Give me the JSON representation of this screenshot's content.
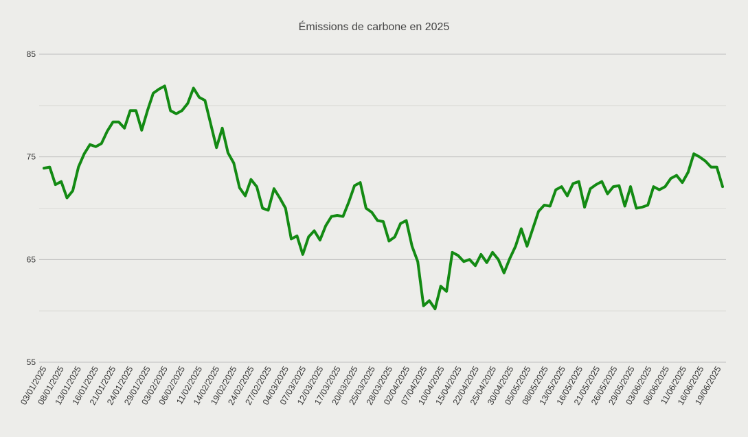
{
  "chart_data": {
    "type": "line",
    "title": "Émissions de carbone en 2025",
    "xlabel": "",
    "ylabel": "",
    "ylim": [
      55,
      85
    ],
    "yticks": [
      55,
      65,
      75,
      85
    ],
    "grid": true,
    "colors": {
      "line": "#138a13",
      "grid_major": "#bdbdbd",
      "grid_minor": "#dcdcd8",
      "background": "#ededea"
    },
    "xtick_labels": [
      "03/01/2025",
      "08/01/2025",
      "13/01/2025",
      "16/01/2025",
      "21/01/2025",
      "24/01/2025",
      "29/01/2025",
      "03/02/2025",
      "06/02/2025",
      "11/02/2025",
      "14/02/2025",
      "19/02/2025",
      "24/02/2025",
      "27/02/2025",
      "04/03/2025",
      "07/03/2025",
      "12/03/2025",
      "17/03/2025",
      "20/03/2025",
      "25/03/2025",
      "28/03/2025",
      "02/04/2025",
      "07/04/2025",
      "10/04/2025",
      "15/04/2025",
      "22/04/2025",
      "25/04/2025",
      "30/04/2025",
      "05/05/2025",
      "08/05/2025",
      "13/05/2025",
      "16/05/2025",
      "21/05/2025",
      "26/05/2025",
      "29/05/2025",
      "03/06/2025",
      "06/06/2025",
      "11/06/2025",
      "16/06/2025",
      "19/06/2025"
    ],
    "series": [
      {
        "values": [
          73.9,
          74.0,
          72.3,
          72.6,
          71.0,
          71.7,
          74.0,
          75.3,
          76.2,
          76.0,
          76.3,
          77.5,
          78.4,
          78.4,
          77.8,
          79.5,
          79.5,
          77.6,
          79.5,
          81.2,
          81.6,
          81.9,
          79.5,
          79.2,
          79.5,
          80.2,
          81.7,
          80.8,
          80.5,
          78.2,
          75.9,
          77.8,
          75.4,
          74.4,
          72.0,
          71.2,
          72.8,
          72.1,
          70.0,
          69.8,
          71.9,
          71.0,
          70.0,
          67.0,
          67.3,
          65.5,
          67.2,
          67.8,
          66.9,
          68.3,
          69.2,
          69.3,
          69.2,
          70.6,
          72.2,
          72.5,
          70.0,
          69.6,
          68.8,
          68.7,
          66.8,
          67.2,
          68.5,
          68.8,
          66.3,
          64.8,
          60.5,
          61.0,
          60.2,
          62.4,
          61.9,
          65.7,
          65.4,
          64.8,
          65.0,
          64.4,
          65.5,
          64.7,
          65.7,
          65.0,
          63.7,
          65.1,
          66.3,
          68.0,
          66.3,
          68.0,
          69.7,
          70.3,
          70.2,
          71.8,
          72.1,
          71.2,
          72.4,
          72.6,
          70.1,
          71.9,
          72.3,
          72.6,
          71.4,
          72.1,
          72.2,
          70.2,
          72.1,
          70.0,
          70.1,
          70.3,
          72.1,
          71.8,
          72.1,
          72.9,
          73.2,
          72.5,
          73.5,
          75.3,
          75.0,
          74.6,
          74.0,
          74.0,
          72.1
        ]
      }
    ]
  }
}
